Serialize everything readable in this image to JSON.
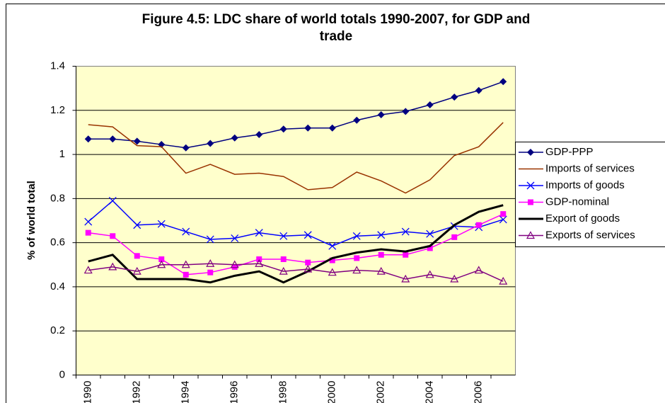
{
  "chart_data": {
    "type": "line",
    "title": [
      "Figure 4.5: LDC share of world totals 1990-2007, for GDP and",
      "trade"
    ],
    "y_label": "% of world total",
    "categories": [
      1990,
      null,
      1992,
      null,
      1994,
      null,
      1996,
      null,
      1998,
      null,
      2000,
      null,
      2002,
      null,
      2004,
      null,
      2006,
      null
    ],
    "ylim": [
      0,
      1.4
    ],
    "yticks": [
      0,
      0.2,
      0.4,
      0.6,
      0.8,
      1,
      1.2,
      1.4
    ],
    "grid": true,
    "legend": "right",
    "series": [
      {
        "name": "GDP-PPP",
        "color": "#000080",
        "marker": "diamond",
        "values": [
          1.07,
          1.07,
          1.06,
          1.045,
          1.03,
          1.05,
          1.075,
          1.09,
          1.115,
          1.12,
          1.12,
          1.155,
          1.18,
          1.195,
          1.225,
          1.26,
          1.29,
          1.33
        ]
      },
      {
        "name": "Imports of services",
        "color": "#993300",
        "marker": "none",
        "values": [
          1.135,
          1.125,
          1.04,
          1.035,
          0.915,
          0.955,
          0.91,
          0.915,
          0.9,
          0.84,
          0.85,
          0.92,
          0.88,
          0.825,
          0.885,
          0.995,
          1.035,
          1.145
        ]
      },
      {
        "name": "Imports of goods",
        "color": "#0000ff",
        "marker": "x",
        "values": [
          0.695,
          0.79,
          0.68,
          0.685,
          0.65,
          0.615,
          0.62,
          0.645,
          0.63,
          0.635,
          0.585,
          0.63,
          0.635,
          0.65,
          0.64,
          0.675,
          0.67,
          0.705
        ]
      },
      {
        "name": "GDP-nominal",
        "color": "#ff00ff",
        "marker": "square",
        "values": [
          0.645,
          0.63,
          0.54,
          0.525,
          0.455,
          0.465,
          0.49,
          0.525,
          0.525,
          0.51,
          0.52,
          0.53,
          0.545,
          0.545,
          0.575,
          0.625,
          0.68,
          0.73
        ]
      },
      {
        "name": "Export of goods",
        "color": "#000000",
        "marker": "none",
        "width": 3,
        "values": [
          0.515,
          0.545,
          0.435,
          0.435,
          0.435,
          0.42,
          0.45,
          0.47,
          0.42,
          0.47,
          0.53,
          0.555,
          0.57,
          0.56,
          0.585,
          0.68,
          0.74,
          0.77
        ]
      },
      {
        "name": "Exports of services",
        "color": "#800080",
        "marker": "triangle",
        "values": [
          0.475,
          0.49,
          0.47,
          0.5,
          0.5,
          0.505,
          0.5,
          0.505,
          0.47,
          0.48,
          0.465,
          0.475,
          0.47,
          0.435,
          0.455,
          0.435,
          0.475,
          0.425
        ]
      }
    ]
  }
}
